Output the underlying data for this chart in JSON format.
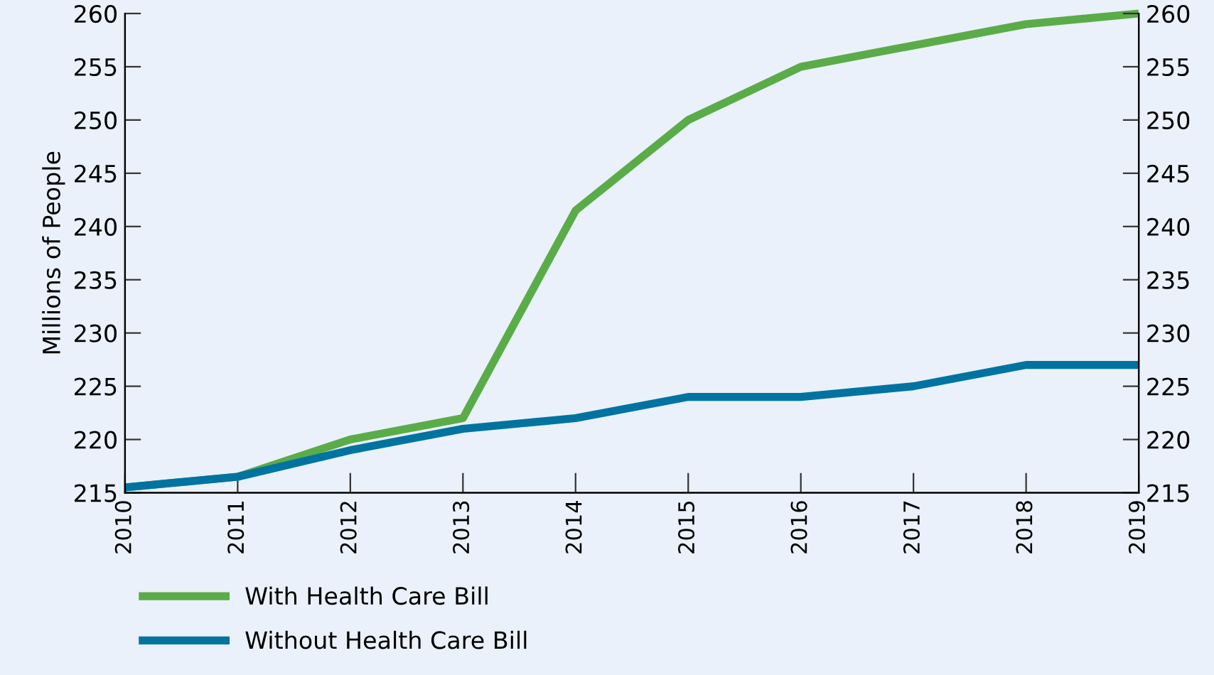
{
  "chart_data": {
    "type": "line",
    "ylabel": "Millions of People",
    "categories": [
      "2010",
      "2011",
      "2012",
      "2013",
      "2014",
      "2015",
      "2016",
      "2017",
      "2018",
      "2019"
    ],
    "series": [
      {
        "name": "With Health Care Bill",
        "color": "#5aac48",
        "values": [
          215.5,
          216.5,
          220,
          222,
          241.5,
          250,
          255,
          257,
          259,
          260
        ]
      },
      {
        "name": "Without Health Care Bill",
        "color": "#0073a1",
        "values": [
          215.5,
          216.5,
          219,
          221,
          222,
          224,
          224,
          225,
          227,
          227
        ]
      }
    ],
    "ylim": [
      215,
      260
    ],
    "yticks": [
      215,
      220,
      225,
      230,
      235,
      240,
      245,
      250,
      255,
      260
    ],
    "y2lim": [
      215,
      260
    ],
    "y2ticks": [
      215,
      220,
      225,
      230,
      235,
      240,
      245,
      250,
      255,
      260
    ],
    "legend": "bottom left",
    "grid": false,
    "marker": "none",
    "line_style": "solid"
  }
}
